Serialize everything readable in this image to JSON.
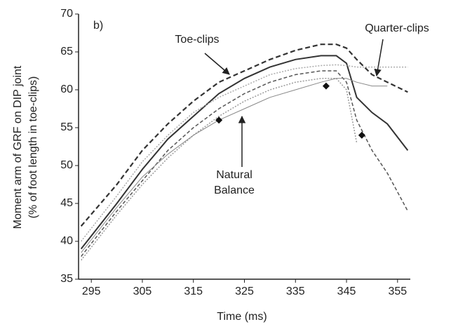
{
  "chart_data": {
    "type": "line",
    "x_label": "Time (ms)",
    "y_label": [
      "Moment arm of GRF on DIP joint",
      "(% of foot length in toe-clips)"
    ],
    "panel_label": "b)",
    "annotations": [
      [
        "Toe-clips"
      ],
      [
        "Quarter-clips"
      ],
      [
        "Natural",
        "Balance"
      ]
    ],
    "xlim": [
      292.5,
      357.5
    ],
    "xticks": [
      295,
      305,
      315,
      325,
      335,
      345,
      355
    ],
    "ylim": [
      35,
      70
    ],
    "yticks": [
      35,
      40,
      45,
      50,
      55,
      60,
      65,
      70
    ],
    "x": [
      293,
      300,
      305,
      310,
      315,
      320,
      325,
      330,
      335,
      340,
      343,
      345,
      347,
      350,
      353,
      357
    ],
    "series": [
      {
        "color": "#333333",
        "dash": "7,4",
        "width": 2.2,
        "values": [
          42,
          47.5,
          52,
          55.5,
          58.5,
          61,
          62.5,
          64,
          65.2,
          66,
          66,
          65.5,
          64,
          62,
          61,
          59.7
        ]
      },
      {
        "color": "#333333",
        "dash": "",
        "width": 2,
        "values": [
          39,
          45,
          49.5,
          53.5,
          56.5,
          59.5,
          61.5,
          63,
          64,
          64.5,
          64.5,
          63.5,
          59,
          57,
          55.5,
          52
        ]
      },
      {
        "color": "#555555",
        "dash": "5,3",
        "width": 1.5,
        "values": [
          38,
          44,
          48,
          52,
          55,
          57.5,
          59.5,
          61,
          62,
          62.5,
          62.5,
          61,
          56,
          52,
          49,
          44
        ]
      },
      {
        "color": "#999999",
        "dash": "2,2",
        "width": 1.5,
        "values": [
          37.5,
          43.5,
          47.5,
          51,
          54,
          56.5,
          58.5,
          60,
          61,
          61.5,
          61.5,
          60,
          53,
          null,
          null,
          null
        ]
      },
      {
        "color": "#888888",
        "dash": "",
        "width": 1,
        "values": [
          38.5,
          44.5,
          48.5,
          51.5,
          54,
          56,
          57.5,
          59,
          60,
          61,
          61.5,
          61.5,
          61,
          60.5,
          60.5,
          null
        ]
      },
      {
        "color": "#aaaaaa",
        "dash": "2,2",
        "width": 1.5,
        "values": [
          40,
          46,
          50.5,
          54,
          57,
          59,
          60.5,
          62,
          62.8,
          63.2,
          63.3,
          63.2,
          63,
          63,
          63,
          63
        ]
      }
    ],
    "markers": {
      "x": [
        320,
        341,
        348
      ],
      "values": [
        56,
        60.5,
        54
      ]
    }
  }
}
